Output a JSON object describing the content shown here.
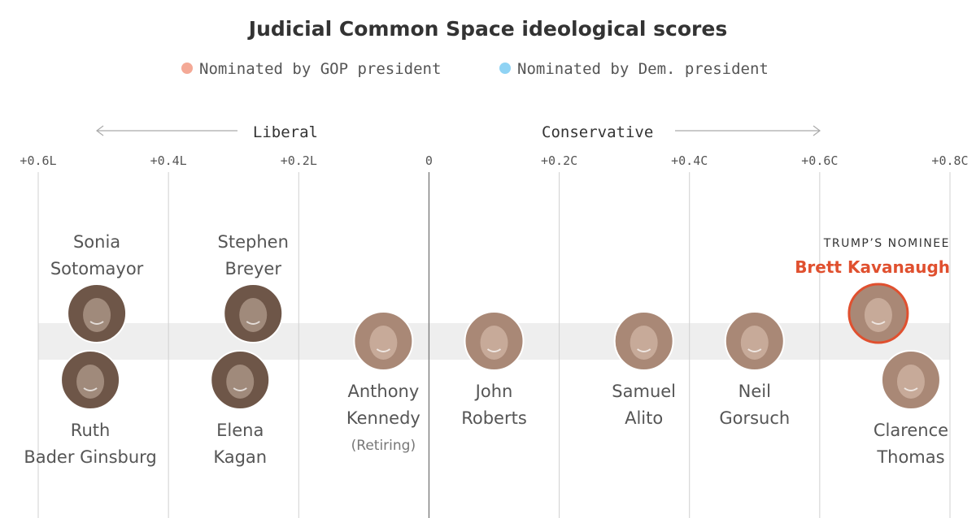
{
  "colors": {
    "gop": "#f4a996",
    "dem": "#8fd3f4",
    "highlight": "#e0502f",
    "band": "#eeeeee",
    "grid": "#d0d0d0",
    "zero": "#777777",
    "face": "#a98876",
    "face_dark": "#6e5648"
  },
  "chart_data": {
    "type": "scatter",
    "title": "Judicial Common Space ideological scores",
    "legend": [
      {
        "label": "Nominated by GOP president",
        "color": "#f4a996"
      },
      {
        "label": "Nominated by Dem. president",
        "color": "#8fd3f4"
      }
    ],
    "legend_placement": "top-center",
    "direction_labels": {
      "left": "Liberal",
      "right": "Conservative"
    },
    "xlim": [
      -0.6,
      0.8
    ],
    "ticks": [
      {
        "value": -0.6,
        "label": "+0.6L"
      },
      {
        "value": -0.4,
        "label": "+0.4L"
      },
      {
        "value": -0.2,
        "label": "+0.2L"
      },
      {
        "value": 0,
        "label": "0"
      },
      {
        "value": 0.2,
        "label": "+0.2C"
      },
      {
        "value": 0.4,
        "label": "+0.4C"
      },
      {
        "value": 0.6,
        "label": "+0.6C"
      },
      {
        "value": 0.8,
        "label": "+0.8C"
      }
    ],
    "grid": true,
    "points": [
      {
        "name_lines": [
          "Sonia",
          "Sotomayor"
        ],
        "x": -0.51,
        "party": "dem",
        "row": "above"
      },
      {
        "name_lines": [
          "Ruth",
          "Bader Ginsburg"
        ],
        "x": -0.52,
        "party": "dem",
        "row": "below"
      },
      {
        "name_lines": [
          "Stephen",
          "Breyer"
        ],
        "x": -0.27,
        "party": "dem",
        "row": "above"
      },
      {
        "name_lines": [
          "Elena",
          "Kagan"
        ],
        "x": -0.29,
        "party": "dem",
        "row": "below"
      },
      {
        "name_lines": [
          "Anthony",
          "Kennedy"
        ],
        "note": "(Retiring)",
        "x": -0.07,
        "party": "gop",
        "row": "middle"
      },
      {
        "name_lines": [
          "John",
          "Roberts"
        ],
        "x": 0.1,
        "party": "gop",
        "row": "middle"
      },
      {
        "name_lines": [
          "Samuel",
          "Alito"
        ],
        "x": 0.33,
        "party": "gop",
        "row": "middle"
      },
      {
        "name_lines": [
          "Neil",
          "Gorsuch"
        ],
        "x": 0.5,
        "party": "gop",
        "row": "middle"
      },
      {
        "name_lines": [
          "Brett Kavanaugh"
        ],
        "label_above": "TRUMP’S NOMINEE",
        "x": 0.69,
        "party": "gop",
        "row": "above",
        "highlight": true
      },
      {
        "name_lines": [
          "Clarence",
          "Thomas"
        ],
        "x": 0.74,
        "party": "gop",
        "row": "below"
      }
    ]
  }
}
